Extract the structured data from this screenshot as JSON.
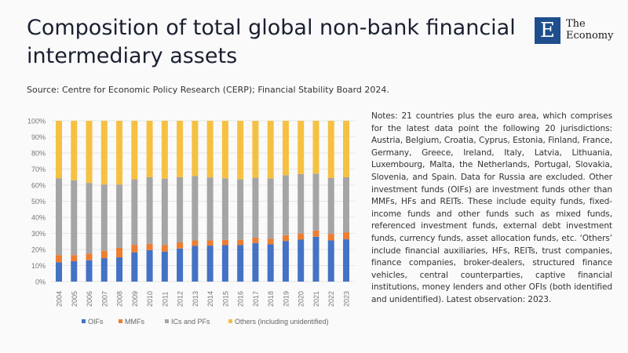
{
  "header": {
    "title": "Composition of total global non-bank financial intermediary assets",
    "source": "Source: Centre for Economic Policy Research (CERP); Financial Stability Board 2024.",
    "logo": {
      "mark": "E",
      "line1": "The",
      "line2": "Economy"
    }
  },
  "notes": "Notes: 21 countries plus the euro area, which comprises for the latest data point the following 20 jurisdictions: Austria, Belgium, Croatia, Cyprus, Estonia, Finland, France, Germany, Greece, Ireland, Italy, Latvia, Lithuania, Luxembourg, Malta, the Netherlands, Portugal, Slovakia, Slovenia, and Spain. Data for Russia are excluded. Other investment funds (OIFs) are investment funds other than MMFs, HFs and REITs. These include equity funds, fixed-income funds and other funds such as mixed funds, referenced investment funds, external debt investment funds, currency funds, asset allocation funds, etc. ‘Others’ include financial auxiliaries, HFs, REITs, trust companies, finance companies, broker-dealers, structured finance vehicles, central counterparties, captive financial institutions, money lenders and other OFIs (both identified and unidentified). Latest observation: 2023.",
  "chart_data": {
    "type": "bar",
    "stacked": "percent",
    "categories": [
      "2004",
      "2005",
      "2006",
      "2007",
      "2008",
      "2009",
      "2010",
      "2011",
      "2012",
      "2013",
      "2014",
      "2015",
      "2016",
      "2017",
      "2018",
      "2019",
      "2020",
      "2021",
      "2022",
      "2023"
    ],
    "series": [
      {
        "name": "OIFs",
        "color": "#4472c4",
        "values": [
          12,
          12.7,
          13.3,
          14.6,
          15.1,
          18.2,
          19.6,
          18.7,
          20.6,
          22.2,
          22.4,
          22.7,
          22.7,
          24,
          23.2,
          25.3,
          26.1,
          27.9,
          25.6,
          26.3
        ]
      },
      {
        "name": "MMFs",
        "color": "#ed7d31",
        "values": [
          4.5,
          3.8,
          4.1,
          4.6,
          5.9,
          4.7,
          3.9,
          4,
          3.8,
          3.4,
          3.2,
          3.3,
          3.3,
          3.3,
          3.4,
          3.6,
          3.8,
          3.9,
          4.1,
          4.4
        ]
      },
      {
        "name": "ICs and PFs",
        "color": "#a5a5a5",
        "values": [
          47.8,
          46.5,
          44,
          41.2,
          39.4,
          40.7,
          41.4,
          41.3,
          40.5,
          40.1,
          39.2,
          38.3,
          37.6,
          37.3,
          37.5,
          37.3,
          37,
          35.4,
          34.7,
          34.2
        ]
      },
      {
        "name": "Others (including unidentified)",
        "color": "#f6c142",
        "values": [
          35.7,
          37,
          38.6,
          39.6,
          39.6,
          36.4,
          35.1,
          36,
          35.1,
          34.3,
          35.2,
          35.7,
          36.4,
          35.4,
          35.9,
          33.8,
          33.1,
          32.8,
          35.6,
          35.1
        ]
      }
    ],
    "yticks": [
      "0%",
      "10%",
      "20%",
      "30%",
      "40%",
      "50%",
      "60%",
      "70%",
      "80%",
      "90%",
      "100%"
    ],
    "ylim": [
      0,
      100
    ],
    "grid": true,
    "legend": "bottom"
  }
}
